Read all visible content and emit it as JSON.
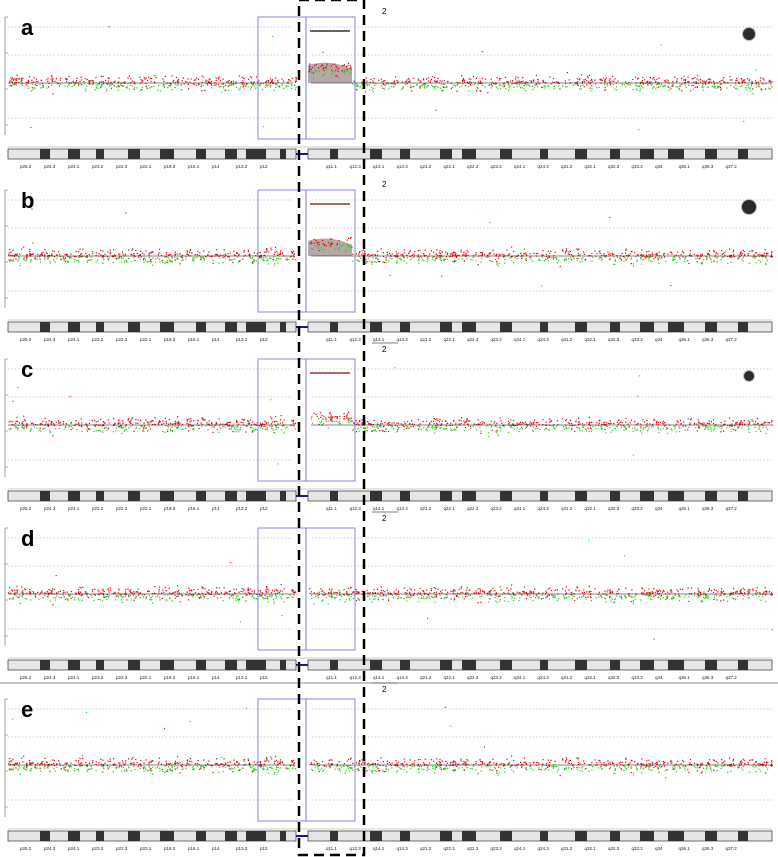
{
  "figure": {
    "chromosome_number": "2",
    "band_labels": [
      "p25.2",
      "p24.3",
      "p24.1",
      "p23.2",
      "p22.3",
      "p22.1",
      "p18.3",
      "p16.1",
      "p14",
      "p13.2",
      "p12",
      "q11.1",
      "q12.3",
      "q14.1",
      "q14.3",
      "q21.2",
      "q22.1",
      "q22.3",
      "q23.2",
      "q24.1",
      "q24.3",
      "q31.2",
      "q32.1",
      "q32.3",
      "q33.2",
      "q34",
      "q36.1",
      "q36.3",
      "q37.2"
    ],
    "panels": [
      {
        "label": "a",
        "show_segment_bar": true,
        "segment_color": "#333333",
        "gain_shading": true,
        "gain_strength": 1.0,
        "cell_icon": true,
        "cell_icon_size": 6
      },
      {
        "label": "b",
        "show_segment_bar": true,
        "segment_color": "#8b3a2a",
        "gain_shading": true,
        "gain_strength": 0.85,
        "cell_icon": true,
        "cell_icon_size": 7
      },
      {
        "label": "c",
        "show_segment_bar": true,
        "segment_color": "#8b3a2a",
        "gain_shading": false,
        "gain_strength": 0.5,
        "cell_icon": true,
        "cell_icon_size": 5
      },
      {
        "label": "d",
        "show_segment_bar": false,
        "segment_color": "",
        "gain_shading": false,
        "gain_strength": 0.0,
        "cell_icon": false,
        "cell_icon_size": 0
      },
      {
        "label": "e",
        "show_segment_bar": false,
        "segment_color": "",
        "gain_shading": false,
        "gain_strength": 0.0,
        "cell_icon": false,
        "cell_icon_size": 0
      }
    ]
  },
  "colors": {
    "gain_points": "#e8000b",
    "loss_points": "#1fd21f",
    "highlight_box": "#7a7ae6",
    "dashed_box": "#000000",
    "gain_shade": "#a08a8a",
    "ideogram_dark": "#333333",
    "ideogram_light": "#e6e6e6"
  }
}
